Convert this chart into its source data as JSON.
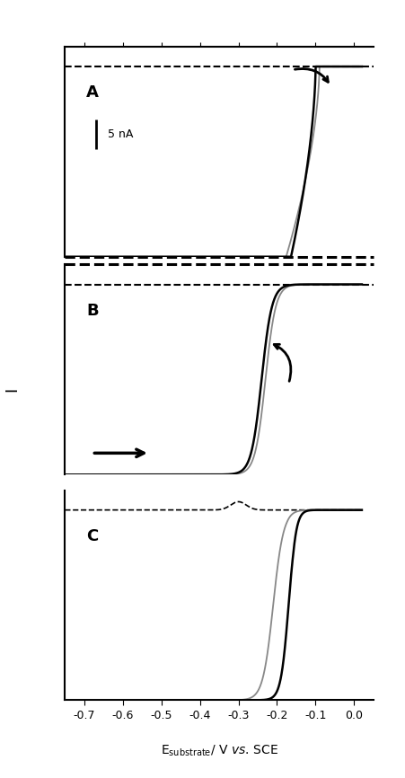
{
  "xlim": [
    -0.75,
    0.05
  ],
  "ylim": [
    -1.15,
    0.12
  ],
  "xticks": [
    -0.7,
    -0.6,
    -0.5,
    -0.4,
    -0.3,
    -0.2,
    -0.1,
    0.0
  ],
  "xlabel_main": "E",
  "xlabel_sub": "substrate",
  "xlabel_rest": "/ V vs. SCE",
  "ylabel": "I",
  "panel_labels": [
    "A",
    "B",
    "C"
  ],
  "scale_bar_text": "5 nA",
  "background_color": "#ffffff",
  "line_color_black": "#000000",
  "line_color_gray": "#888888",
  "dashed_line_color": "#000000"
}
